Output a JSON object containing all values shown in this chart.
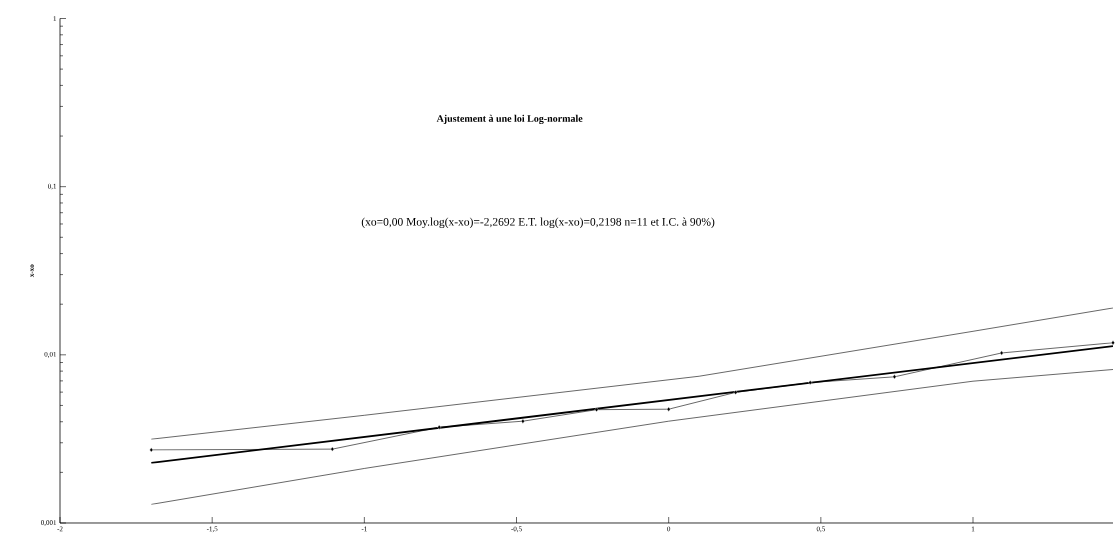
{
  "chart_data": {
    "type": "line",
    "title": "Ajustement à une loi Log-normale",
    "subtitle": "(xo=0,00 Moy.log(x-xo)=-2,2692 E.T. log(x-xo)=0,2198 n=11 et I.C. à 90%)",
    "ylabel": "x-xo",
    "log": "y",
    "grid": false,
    "xlim": [
      -2,
      1.46
    ],
    "ylim": [
      0.001,
      1
    ],
    "xticks": [
      -2,
      {
        "value": -1.5,
        "label": "-1,5"
      },
      -1,
      {
        "value": -0.5,
        "label": "-0,5"
      },
      0,
      {
        "value": 0.5,
        "label": "0,5"
      },
      1
    ],
    "yticks": [
      {
        "value": 0.001,
        "label": "0,001"
      },
      {
        "value": 0.01,
        "label": "0,01"
      },
      {
        "value": 0.1,
        "label": "0,1"
      },
      1
    ],
    "series": [
      {
        "color": "#000000",
        "marker": "diamond",
        "x": [
          -1.7,
          -1.105,
          -0.754,
          -0.479,
          -0.237,
          0.0,
          0.22,
          0.465,
          0.742,
          1.094,
          1.46
        ],
        "values": [
          0.00272,
          0.00275,
          0.00371,
          0.00403,
          0.00472,
          0.00475,
          0.00598,
          0.00684,
          0.0074,
          0.01026,
          0.0118
        ]
      },
      {
        "color": "#000000",
        "marker": "none",
        "x": [
          -1.7,
          1.46
        ],
        "values": [
          0.00228,
          0.01127
        ]
      },
      {
        "color": "#000000",
        "marker": "none",
        "x": [
          -1.7,
          -1.0,
          0.1,
          1.0,
          1.46
        ],
        "values": [
          0.00315,
          0.00437,
          0.00746,
          0.0138,
          0.019
        ]
      },
      {
        "color": "#000000",
        "marker": "none",
        "x": [
          -1.7,
          -1.0,
          0.0,
          1.0,
          1.46
        ],
        "values": [
          0.00129,
          0.00211,
          0.00403,
          0.00697,
          0.00818
        ]
      }
    ]
  }
}
